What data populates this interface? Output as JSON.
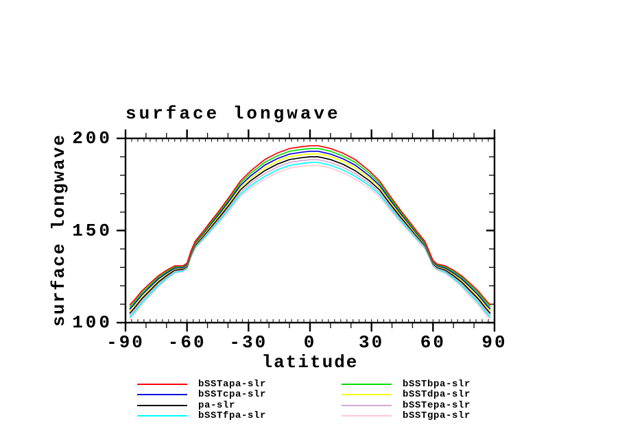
{
  "chart": {
    "title": "surface longwave",
    "xlabel": "latitude",
    "ylabel": "surface longwave"
  },
  "chart_data": {
    "type": "line",
    "title": "surface longwave",
    "xlabel": "latitude",
    "ylabel": "surface longwave",
    "x_range": [
      -90,
      90
    ],
    "y_range": [
      100,
      200
    ],
    "x_major_ticks": [
      -90,
      -60,
      -30,
      0,
      30,
      60,
      90
    ],
    "x_minor_step": 10,
    "x_inner_tick_step": 3,
    "y_major_ticks": [
      100,
      150,
      200
    ],
    "y_minor_step": 10,
    "grid": false,
    "legend_position": "below",
    "frame_color": "#000000",
    "x": [
      -88,
      -86,
      -82,
      -78,
      -74,
      -70,
      -66,
      -62,
      -60,
      -58,
      -56,
      -52,
      -49,
      -44,
      -39,
      -34,
      -29,
      -22,
      -16,
      -10,
      -4,
      0,
      4,
      10,
      16,
      22,
      29,
      34,
      39,
      44,
      49,
      52,
      56,
      58,
      60,
      62,
      66,
      70,
      74,
      78,
      82,
      86,
      88
    ],
    "series": [
      {
        "name": "bSSTgpa-slr",
        "color": "#ffc9d2",
        "values": [
          101.5,
          104.1,
          109.8,
          114.5,
          119.4,
          123.3,
          126.8,
          127.6,
          129.1,
          135.5,
          140.3,
          144.9,
          148.6,
          154.6,
          161.2,
          168.3,
          173.0,
          177.9,
          181.4,
          183.9,
          184.9,
          185.4,
          185.4,
          183.9,
          181.4,
          177.9,
          173.0,
          168.3,
          161.2,
          154.6,
          148.6,
          144.9,
          140.3,
          135.5,
          130.6,
          128.6,
          126.8,
          123.3,
          119.4,
          114.5,
          109.8,
          104.1,
          101.5
        ]
      },
      {
        "name": "bSSTfpa-slr",
        "color": "#00ffff",
        "values": [
          102.7,
          105.2,
          110.8,
          115.5,
          120.2,
          124.0,
          127.3,
          128.1,
          129.6,
          136.0,
          140.9,
          145.6,
          149.4,
          155.6,
          162.3,
          169.5,
          174.3,
          179.4,
          182.9,
          185.4,
          186.4,
          186.9,
          186.9,
          185.4,
          182.9,
          179.4,
          174.3,
          169.5,
          162.3,
          155.6,
          149.4,
          145.6,
          140.9,
          136.0,
          131.1,
          129.1,
          127.3,
          124.0,
          120.2,
          115.5,
          110.8,
          105.2,
          102.7
        ]
      },
      {
        "name": "bSSTepa-slr",
        "color": "#d2a8d2",
        "values": [
          103.8,
          106.3,
          111.9,
          116.5,
          121.1,
          124.7,
          127.9,
          128.5,
          130.0,
          136.5,
          141.4,
          146.3,
          150.2,
          156.5,
          163.3,
          170.7,
          175.6,
          180.9,
          184.4,
          186.9,
          187.9,
          188.4,
          188.4,
          186.9,
          184.4,
          180.9,
          175.6,
          170.7,
          163.3,
          156.5,
          150.2,
          146.3,
          141.4,
          136.5,
          131.5,
          129.5,
          127.9,
          124.7,
          121.1,
          116.5,
          111.9,
          106.3,
          103.8
        ]
      },
      {
        "name": "pa-slr",
        "color": "#000000",
        "values": [
          105.0,
          107.5,
          113.0,
          117.5,
          122.0,
          125.5,
          128.5,
          129.0,
          130.5,
          137.0,
          142.0,
          147.0,
          151.0,
          157.5,
          164.5,
          172.0,
          177.0,
          182.5,
          186.0,
          188.5,
          189.5,
          190.0,
          190.0,
          188.5,
          186.0,
          182.5,
          177.0,
          172.0,
          164.5,
          157.5,
          151.0,
          147.0,
          142.0,
          137.0,
          132.0,
          130.0,
          128.5,
          125.5,
          122.0,
          117.5,
          113.0,
          107.5,
          105.0
        ]
      },
      {
        "name": "bSSTdpa-slr",
        "color": "#ffff00",
        "values": [
          106.2,
          108.7,
          114.1,
          118.5,
          122.9,
          126.3,
          129.1,
          129.5,
          131.0,
          137.5,
          142.6,
          147.7,
          151.8,
          158.5,
          165.7,
          173.3,
          178.4,
          184.1,
          187.6,
          190.1,
          191.1,
          191.6,
          191.6,
          190.1,
          187.6,
          184.1,
          178.4,
          173.3,
          165.7,
          158.5,
          151.8,
          147.7,
          142.6,
          137.5,
          132.5,
          130.5,
          129.1,
          126.3,
          122.9,
          118.5,
          114.1,
          108.7,
          106.2
        ]
      },
      {
        "name": "bSSTcpa-slr",
        "color": "#0000e0",
        "values": [
          107.3,
          109.7,
          115.1,
          119.5,
          123.7,
          126.9,
          129.6,
          129.9,
          131.4,
          138.0,
          143.1,
          148.4,
          152.6,
          159.4,
          166.7,
          174.4,
          179.6,
          185.5,
          189.0,
          191.5,
          192.5,
          193.0,
          193.0,
          191.5,
          189.0,
          185.5,
          179.6,
          174.4,
          166.7,
          159.4,
          152.6,
          148.4,
          143.1,
          138.0,
          132.9,
          130.9,
          129.6,
          126.9,
          123.7,
          119.5,
          115.1,
          109.7,
          107.3
        ]
      },
      {
        "name": "bSSTbpa-slr",
        "color": "#00dd00",
        "values": [
          108.4,
          110.8,
          116.2,
          120.4,
          124.6,
          127.7,
          130.2,
          130.4,
          131.9,
          138.5,
          143.6,
          149.0,
          153.3,
          160.3,
          167.7,
          175.6,
          181.0,
          187.0,
          190.5,
          193.0,
          194.0,
          194.5,
          194.5,
          193.0,
          190.5,
          187.0,
          181.0,
          175.6,
          167.7,
          160.3,
          153.3,
          149.0,
          143.6,
          138.5,
          133.4,
          131.4,
          130.2,
          127.7,
          124.6,
          120.4,
          116.2,
          110.8,
          108.4
        ]
      },
      {
        "name": "bSSTapa-slr",
        "color": "#ff0000",
        "values": [
          109.5,
          111.9,
          117.2,
          121.4,
          125.4,
          128.4,
          130.8,
          130.8,
          132.3,
          139.0,
          144.2,
          149.7,
          154.1,
          161.2,
          168.8,
          176.8,
          182.3,
          188.5,
          192.0,
          194.5,
          195.5,
          196.0,
          196.0,
          194.5,
          192.0,
          188.5,
          182.3,
          176.8,
          168.8,
          161.2,
          154.1,
          149.7,
          144.2,
          139.0,
          133.8,
          131.8,
          130.8,
          128.4,
          125.4,
          121.4,
          117.2,
          111.9,
          109.5
        ]
      }
    ]
  },
  "legend": {
    "columns": [
      {
        "items": [
          {
            "label": "bSSTapa-slr",
            "color": "#ff0000"
          },
          {
            "label": "bSSTcpa-slr",
            "color": "#0000e0"
          },
          {
            "label": "pa-slr",
            "color": "#000000"
          },
          {
            "label": "bSSTfpa-slr",
            "color": "#00ffff"
          }
        ]
      },
      {
        "items": [
          {
            "label": "bSSTbpa-slr",
            "color": "#00dd00"
          },
          {
            "label": "bSSTdpa-slr",
            "color": "#ffff00"
          },
          {
            "label": "bSSTepa-slr",
            "color": "#d2a8d2"
          },
          {
            "label": "bSSTgpa-slr",
            "color": "#ffc9d2"
          }
        ]
      }
    ]
  }
}
